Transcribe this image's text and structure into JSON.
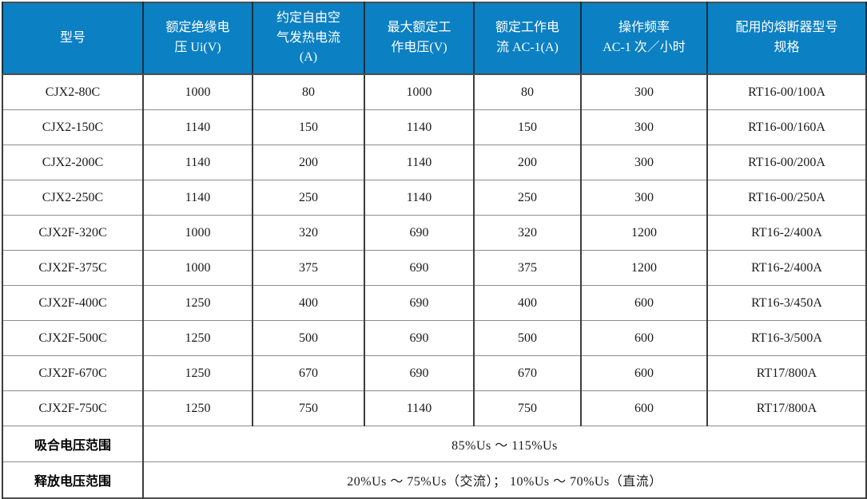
{
  "table": {
    "column_headers": [
      "型号",
      "额定绝缘电\n压 Ui(V)",
      "约定自由空\n气发热电流\n(A)",
      "最大额定工\n作电压(V)",
      "额定工作电\n流 AC-1(A)",
      "操作频率\nAC-1 次／小时",
      "配用的熔断器型号\n规格"
    ],
    "rows": [
      [
        "CJX2-80C",
        "1000",
        "80",
        "1000",
        "80",
        "300",
        "RT16-00/100A"
      ],
      [
        "CJX2-150C",
        "1140",
        "150",
        "1140",
        "150",
        "300",
        "RT16-00/160A"
      ],
      [
        "CJX2-200C",
        "1140",
        "200",
        "1140",
        "200",
        "300",
        "RT16-00/200A"
      ],
      [
        "CJX2-250C",
        "1140",
        "250",
        "1140",
        "250",
        "300",
        "RT16-00/250A"
      ],
      [
        "CJX2F-320C",
        "1000",
        "320",
        "690",
        "320",
        "1200",
        "RT16-2/400A"
      ],
      [
        "CJX2F-375C",
        "1000",
        "375",
        "690",
        "375",
        "1200",
        "RT16-2/400A"
      ],
      [
        "CJX2F-400C",
        "1250",
        "400",
        "690",
        "400",
        "600",
        "RT16-3/450A"
      ],
      [
        "CJX2F-500C",
        "1250",
        "500",
        "690",
        "500",
        "600",
        "RT16-3/500A"
      ],
      [
        "CJX2F-670C",
        "1250",
        "670",
        "690",
        "670",
        "600",
        "RT17/800A"
      ],
      [
        "CJX2F-750C",
        "1250",
        "750",
        "1140",
        "750",
        "600",
        "RT17/800A"
      ]
    ],
    "footer_rows": [
      {
        "label": "吸合电压范围",
        "value": "85%Us ～ 115%Us"
      },
      {
        "label": "释放电压范围",
        "value": "20%Us ～ 75%Us（交流）； 10%Us ～ 70%Us（直流）"
      }
    ]
  },
  "colors": {
    "header_background": "#0b80c3",
    "header_text": "#ffffff",
    "grid_vertical_border": "#3d3d3d",
    "grid_horizontal_border": "#8c8c8c",
    "body_text": "#1a1a1a"
  }
}
